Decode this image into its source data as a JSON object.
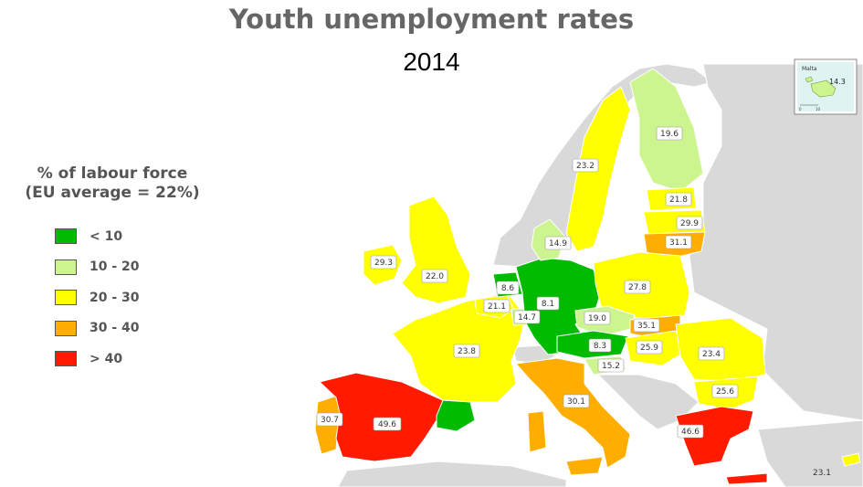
{
  "title": "Youth unemployment rates",
  "subtitle": "2014",
  "legend": {
    "title_line1": "% of labour force",
    "title_line2": "(EU average = 22%)",
    "items": [
      {
        "label": "< 10",
        "color": "#00bb00"
      },
      {
        "label": "10 - 20",
        "color": "#ccf58f"
      },
      {
        "label": "20 - 30",
        "color": "#ffff00"
      },
      {
        "label": "30 - 40",
        "color": "#ffae00"
      },
      {
        "label": "> 40",
        "color": "#ff1a00"
      }
    ]
  },
  "inset": {
    "name": "Malta",
    "value": "14.3",
    "scale_0": "0",
    "scale_10": "10"
  },
  "colors": {
    "sea": "#ffffff",
    "non_eu": "#d9d9d9"
  },
  "regions": [
    {
      "id": "portugal",
      "value": "30.7",
      "class": "30 - 40"
    },
    {
      "id": "spain",
      "value": "49.6",
      "class": "> 40"
    },
    {
      "id": "catalonia",
      "value": "",
      "class": "< 10"
    },
    {
      "id": "france",
      "value": "23.8",
      "class": "20 - 30"
    },
    {
      "id": "ireland",
      "value": "29.3",
      "class": "20 - 30"
    },
    {
      "id": "united-kingdom",
      "value": "22.0",
      "class": "20 - 30"
    },
    {
      "id": "belgium",
      "value": "21.1",
      "class": "20 - 30"
    },
    {
      "id": "netherlands",
      "value": "8.6",
      "class": "< 10"
    },
    {
      "id": "luxembourg",
      "value": "14.7",
      "class": "10 - 20"
    },
    {
      "id": "germany",
      "value": "8.1",
      "class": "< 10"
    },
    {
      "id": "denmark",
      "value": "14.9",
      "class": "10 - 20"
    },
    {
      "id": "sweden",
      "value": "23.2",
      "class": "20 - 30"
    },
    {
      "id": "finland",
      "value": "19.6",
      "class": "10 - 20"
    },
    {
      "id": "estonia",
      "value": "21.8",
      "class": "20 - 30"
    },
    {
      "id": "latvia",
      "value": "29.9",
      "class": "20 - 30"
    },
    {
      "id": "lithuania",
      "value": "31.1",
      "class": "30 - 40"
    },
    {
      "id": "poland",
      "value": "27.8",
      "class": "20 - 30"
    },
    {
      "id": "czech-republic",
      "value": "19.0",
      "class": "10 - 20"
    },
    {
      "id": "austria",
      "value": "8.3",
      "class": "< 10"
    },
    {
      "id": "slovakia",
      "value": "35.1",
      "class": "30 - 40"
    },
    {
      "id": "hungary",
      "value": "25.9",
      "class": "20 - 30"
    },
    {
      "id": "slovenia",
      "value": "15.2",
      "class": "10 - 20"
    },
    {
      "id": "romania",
      "value": "23.4",
      "class": "20 - 30"
    },
    {
      "id": "bulgaria",
      "value": "25.6",
      "class": "20 - 30"
    },
    {
      "id": "italy",
      "value": "30.1",
      "class": "30 - 40"
    },
    {
      "id": "greece",
      "value": "46.6",
      "class": "> 40"
    },
    {
      "id": "cyprus",
      "value": "23.1",
      "class": "20 - 30"
    }
  ]
}
